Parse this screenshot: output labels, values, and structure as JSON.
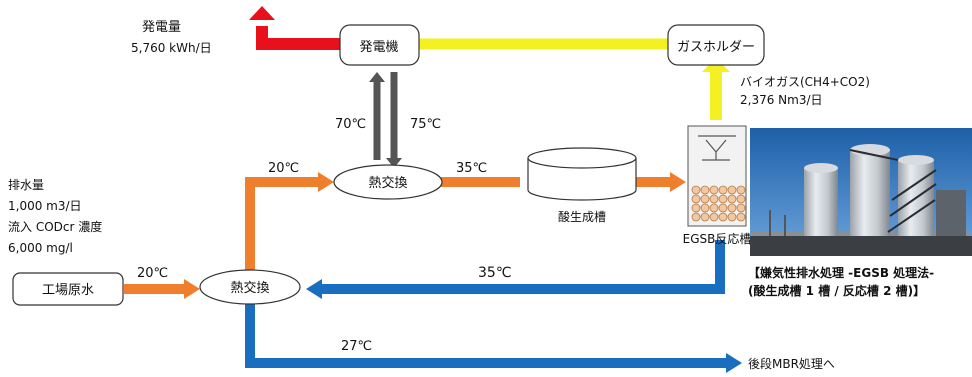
{
  "power": {
    "label": "発電量",
    "value": "5,760 kWh/日"
  },
  "nodes": {
    "generator": "発電機",
    "gas_holder": "ガスホルダー",
    "heat_exchanger_upper": "熱交換",
    "heat_exchanger_lower": "熱交換",
    "acidification_tank": "酸生成槽",
    "egsb_reactor": "EGSB反応槽",
    "raw_water": "工場原水"
  },
  "biogas": {
    "label": "バイオガス(CH4+CO2)",
    "value": "2,376  Nm3/日"
  },
  "temperatures": {
    "t70": "70℃",
    "t75": "75℃",
    "t20_upper": "20℃",
    "t35_upper": "35℃",
    "t20_left": "20℃",
    "t35_return": "35℃",
    "t27": "27℃"
  },
  "wastewater": {
    "line1": "排水量",
    "line2": "1,000 m3/日",
    "line3": "流入 CODcr 濃度",
    "line4": "6,000 mg/l"
  },
  "outlet": "後段MBR処理へ",
  "photo_caption": {
    "line1": "【嫌気性排水処理 -EGSB 処理法-",
    "line2": "(酸生成槽 1 槽 / 反応槽 2 槽)】"
  },
  "colors": {
    "power_line": "#e8101a",
    "gas_line": "#f5f023",
    "water_line": "#ef7f2d",
    "return_line": "#1a6ec0",
    "heat_line": "#555555"
  }
}
